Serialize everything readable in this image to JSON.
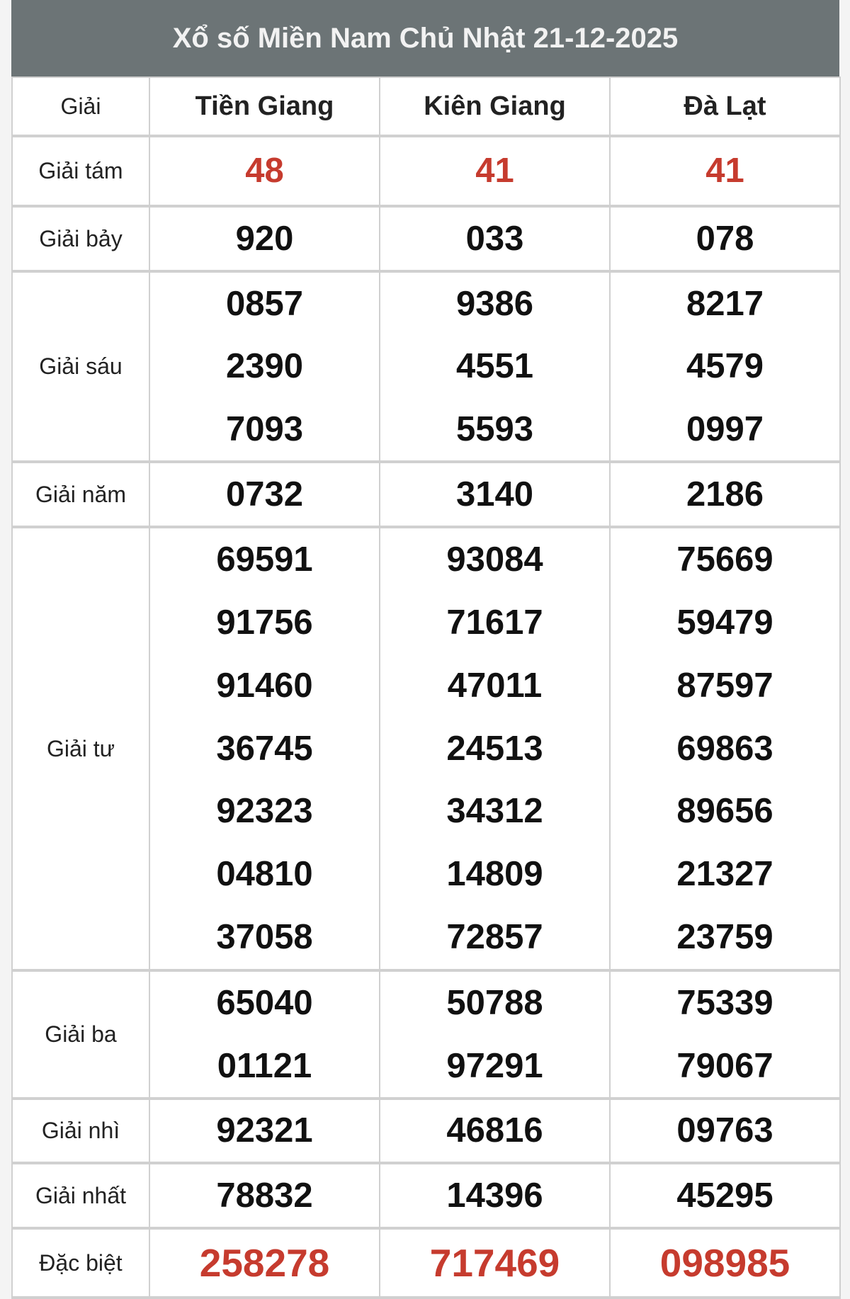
{
  "title": "Xổ số Miền Nam Chủ Nhật 21-12-2025",
  "colors": {
    "header_bg": "#6c7476",
    "highlight": "#c63b2e"
  },
  "header": {
    "label": "Giải",
    "provinces": [
      "Tiền Giang",
      "Kiên Giang",
      "Đà Lạt"
    ]
  },
  "prizes": [
    {
      "label": "Giải tám",
      "highlight": true,
      "values": [
        [
          "48"
        ],
        [
          "41"
        ],
        [
          "41"
        ]
      ]
    },
    {
      "label": "Giải bảy",
      "values": [
        [
          "920"
        ],
        [
          "033"
        ],
        [
          "078"
        ]
      ]
    },
    {
      "label": "Giải sáu",
      "values": [
        [
          "0857",
          "2390",
          "7093"
        ],
        [
          "9386",
          "4551",
          "5593"
        ],
        [
          "8217",
          "4579",
          "0997"
        ]
      ]
    },
    {
      "label": "Giải năm",
      "values": [
        [
          "0732"
        ],
        [
          "3140"
        ],
        [
          "2186"
        ]
      ]
    },
    {
      "label": "Giải tư",
      "values": [
        [
          "69591",
          "91756",
          "91460",
          "36745",
          "92323",
          "04810",
          "37058"
        ],
        [
          "93084",
          "71617",
          "47011",
          "24513",
          "34312",
          "14809",
          "72857"
        ],
        [
          "75669",
          "59479",
          "87597",
          "69863",
          "89656",
          "21327",
          "23759"
        ]
      ]
    },
    {
      "label": "Giải ba",
      "values": [
        [
          "65040",
          "01121"
        ],
        [
          "50788",
          "97291"
        ],
        [
          "75339",
          "79067"
        ]
      ]
    },
    {
      "label": "Giải nhì",
      "values": [
        [
          "92321"
        ],
        [
          "46816"
        ],
        [
          "09763"
        ]
      ]
    },
    {
      "label": "Giải nhất",
      "values": [
        [
          "78832"
        ],
        [
          "14396"
        ],
        [
          "45295"
        ]
      ]
    },
    {
      "label": "Đặc biệt",
      "highlight": true,
      "big": true,
      "values": [
        [
          "258278"
        ],
        [
          "717469"
        ],
        [
          "098985"
        ]
      ]
    }
  ]
}
